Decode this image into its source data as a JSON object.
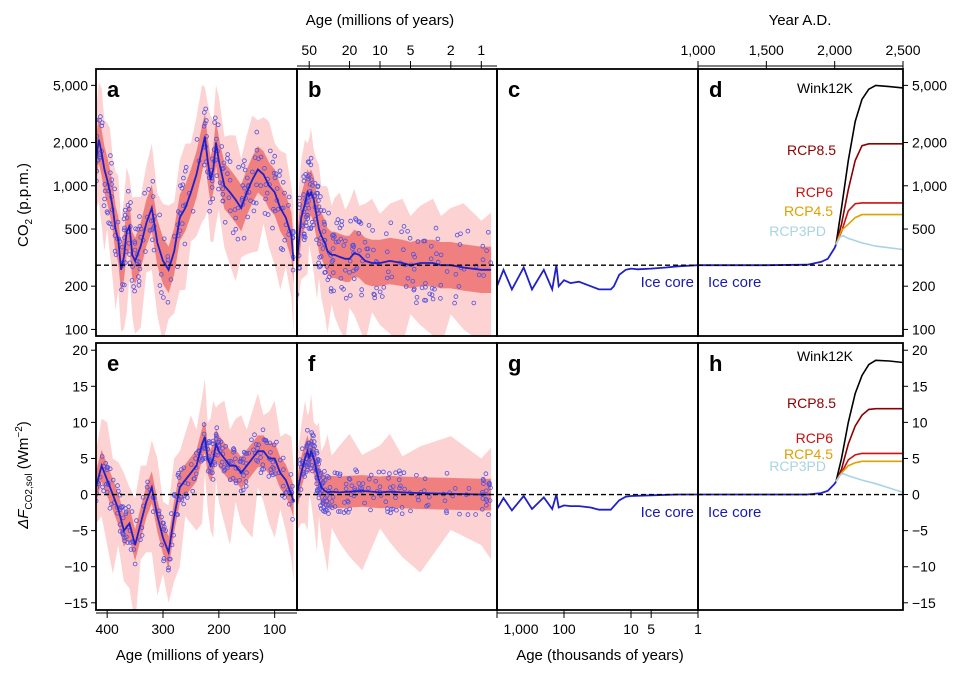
{
  "figure": {
    "top_axes": [
      {
        "title": "Age (millions of years)",
        "ticks": [
          "50",
          "20",
          "10",
          "5",
          "2",
          "1"
        ]
      },
      {
        "title": "Year A.D.",
        "ticks": [
          "1,000",
          "1,500",
          "2,000",
          "2,500"
        ]
      }
    ],
    "bottom_axes": [
      {
        "title": "Age (millions of years)",
        "ticks": [
          "400",
          "300",
          "200",
          "100"
        ]
      },
      {
        "title": "Age (thousands of years)",
        "ticks": [
          "1,000",
          "100",
          "10",
          "5",
          "1"
        ]
      }
    ],
    "row1": {
      "ylabel_main": "CO",
      "ylabel_sub": "2",
      "ylabel_tail": " (p.p.m.)",
      "yticks": [
        "5,000",
        "2,000",
        "1,000",
        "500",
        "200",
        "100"
      ],
      "panels": [
        "a",
        "b",
        "c",
        "d"
      ]
    },
    "row2": {
      "ylabel_main": "ΔF",
      "ylabel_sub": "CO2,sol",
      "ylabel_tail": " (Wm",
      "ylabel_sup": "−2",
      "ylabel_end": ")",
      "yticks": [
        "20",
        "15",
        "10",
        "5",
        "0",
        "−5",
        "−10",
        "−15"
      ],
      "panels": [
        "e",
        "f",
        "g",
        "h"
      ]
    },
    "ice_core_label": "Ice core",
    "colors": {
      "series_line": "#2020c8",
      "points": "#5050e0",
      "band_inner": "#f08080",
      "band_outer": "#fcd2d2",
      "reference_line": "#000000",
      "Wink12K": "#000000",
      "RCP8.5": "#8b0000",
      "RCP6": "#cc1010",
      "RCP4.5": "#e0a000",
      "RCP3PD": "#a8d4e6"
    }
  },
  "chart_data": [
    {
      "type": "line",
      "panel": "a",
      "xlabel": "Age (millions of years)",
      "ylabel": "CO2 (p.p.m.)",
      "yscale": "log",
      "ylim": [
        90,
        6500
      ],
      "xlim": [
        420,
        60
      ],
      "reference_value": 280,
      "x": [
        420,
        415,
        410,
        405,
        400,
        395,
        390,
        385,
        380,
        375,
        370,
        365,
        360,
        355,
        350,
        340,
        330,
        320,
        310,
        300,
        290,
        280,
        270,
        260,
        250,
        240,
        230,
        225,
        220,
        215,
        210,
        205,
        200,
        190,
        180,
        170,
        160,
        150,
        140,
        130,
        120,
        110,
        100,
        90,
        80,
        70,
        66
      ],
      "values": [
        1500,
        2100,
        1700,
        1300,
        1100,
        900,
        700,
        500,
        420,
        260,
        320,
        480,
        520,
        330,
        300,
        380,
        550,
        700,
        400,
        300,
        260,
        350,
        600,
        700,
        900,
        1200,
        1800,
        2200,
        1500,
        1100,
        1300,
        2000,
        1500,
        1000,
        900,
        800,
        700,
        900,
        1100,
        1300,
        1200,
        1000,
        900,
        700,
        600,
        450,
        300
      ]
    },
    {
      "type": "line",
      "panel": "b",
      "xlabel": "Age (millions of years)",
      "ylabel": "CO2 (p.p.m.)",
      "yscale": "log",
      "ylim": [
        90,
        6500
      ],
      "xlim": [
        66,
        0.7
      ],
      "reference_value": 280,
      "x": [
        66,
        60,
        55,
        52,
        50,
        48,
        45,
        42,
        40,
        38,
        35,
        33,
        30,
        28,
        25,
        22,
        20,
        18,
        16,
        14,
        12,
        10,
        8,
        6,
        5,
        4,
        3,
        2.5,
        2,
        1.5,
        1,
        0.8
      ],
      "values": [
        300,
        600,
        750,
        900,
        850,
        900,
        800,
        600,
        500,
        450,
        400,
        350,
        330,
        330,
        320,
        310,
        310,
        340,
        330,
        300,
        290,
        290,
        300,
        290,
        280,
        290,
        290,
        280,
        280,
        270,
        260,
        260
      ]
    },
    {
      "type": "line",
      "panel": "c",
      "xlabel": "Age (thousands of years)",
      "ylabel": "CO2 (p.p.m.)",
      "yscale": "log",
      "ylim": [
        90,
        6500
      ],
      "xlim": [
        1000,
        1
      ],
      "reference_value": 280,
      "x": [
        1000,
        800,
        600,
        400,
        300,
        200,
        150,
        130,
        120,
        100,
        80,
        60,
        40,
        30,
        20,
        18,
        15,
        12,
        10,
        8,
        5,
        3,
        2,
        1
      ],
      "values": [
        200,
        260,
        190,
        270,
        190,
        260,
        190,
        280,
        200,
        220,
        210,
        215,
        200,
        190,
        190,
        200,
        240,
        260,
        265,
        262,
        265,
        270,
        275,
        280
      ]
    },
    {
      "type": "line",
      "panel": "d",
      "xlabel": "Year A.D.",
      "ylabel": "CO2 (p.p.m.)",
      "yscale": "log",
      "ylim": [
        90,
        6500
      ],
      "xlim": [
        1000,
        2500
      ],
      "reference_value": 280,
      "historical": {
        "x": [
          1000,
          1500,
          1800,
          1900,
          1950,
          2000,
          2010
        ],
        "values": [
          280,
          280,
          282,
          295,
          310,
          370,
          390
        ]
      },
      "series": [
        {
          "name": "Wink12K",
          "x": [
            2010,
            2050,
            2100,
            2150,
            2200,
            2250,
            2300,
            2400,
            2500
          ],
          "values": [
            390,
            700,
            1500,
            2800,
            4000,
            4700,
            5000,
            4900,
            4800
          ]
        },
        {
          "name": "RCP8.5",
          "x": [
            2010,
            2050,
            2100,
            2150,
            2200,
            2250,
            2300,
            2500
          ],
          "values": [
            390,
            540,
            940,
            1500,
            1900,
            1960,
            1960,
            1960
          ]
        },
        {
          "name": "RCP6",
          "x": [
            2010,
            2050,
            2100,
            2150,
            2200,
            2300,
            2500
          ],
          "values": [
            390,
            480,
            670,
            750,
            760,
            760,
            760
          ]
        },
        {
          "name": "RCP4.5",
          "x": [
            2010,
            2050,
            2100,
            2150,
            2200,
            2300,
            2500
          ],
          "values": [
            390,
            490,
            540,
            600,
            630,
            630,
            630
          ]
        },
        {
          "name": "RCP3PD",
          "x": [
            2010,
            2040,
            2060,
            2100,
            2200,
            2300,
            2400,
            2500
          ],
          "values": [
            390,
            440,
            450,
            430,
            400,
            380,
            370,
            360
          ]
        }
      ]
    },
    {
      "type": "line",
      "panel": "e",
      "xlabel": "Age (millions of years)",
      "ylabel": "ΔF CO2,sol (Wm−2)",
      "ylim": [
        -16,
        21
      ],
      "xlim": [
        420,
        60
      ],
      "reference_value": 0,
      "x": [
        420,
        410,
        400,
        390,
        380,
        370,
        360,
        350,
        340,
        330,
        320,
        310,
        300,
        290,
        280,
        270,
        260,
        250,
        240,
        230,
        225,
        220,
        215,
        210,
        205,
        200,
        190,
        180,
        170,
        160,
        150,
        140,
        130,
        120,
        110,
        100,
        90,
        80,
        70,
        66
      ],
      "values": [
        1,
        4,
        2,
        0,
        -2,
        -5,
        -4,
        -7,
        -4,
        -1,
        1,
        -3,
        -6,
        -8,
        -3,
        1,
        2,
        3,
        4,
        7,
        8,
        5,
        4,
        5,
        7,
        6,
        5,
        4,
        4,
        3,
        4,
        5,
        6,
        6,
        5,
        5,
        3,
        2,
        0,
        -1
      ]
    },
    {
      "type": "line",
      "panel": "f",
      "xlabel": "Age (millions of years)",
      "ylabel": "ΔF CO2,sol (Wm−2)",
      "ylim": [
        -16,
        21
      ],
      "xlim": [
        66,
        0.7
      ],
      "reference_value": 0,
      "x": [
        66,
        60,
        55,
        52,
        50,
        48,
        45,
        42,
        40,
        38,
        35,
        33,
        30,
        25,
        20,
        15,
        10,
        8,
        6,
        4,
        2,
        1,
        0.8
      ],
      "values": [
        0,
        3,
        5,
        6,
        5,
        6,
        5,
        3,
        2,
        1,
        0.5,
        0.3,
        0.4,
        0.3,
        0.4,
        0.5,
        0.3,
        0.4,
        0.3,
        0.2,
        0.1,
        0,
        0
      ]
    },
    {
      "type": "line",
      "panel": "g",
      "xlabel": "Age (thousands of years)",
      "ylabel": "ΔF CO2,sol (Wm−2)",
      "ylim": [
        -16,
        21
      ],
      "xlim": [
        1000,
        1
      ],
      "reference_value": 0,
      "x": [
        1000,
        800,
        600,
        400,
        300,
        200,
        150,
        130,
        120,
        100,
        80,
        60,
        40,
        30,
        20,
        15,
        12,
        10,
        5,
        2,
        1
      ],
      "values": [
        -2,
        -0.5,
        -2.2,
        -0.2,
        -2,
        -0.4,
        -2,
        0,
        -1.8,
        -1.5,
        -1.6,
        -1.6,
        -1.8,
        -2.1,
        -2.1,
        -0.8,
        -0.3,
        -0.2,
        -0.1,
        0,
        0
      ]
    },
    {
      "type": "line",
      "panel": "h",
      "xlabel": "Year A.D.",
      "ylabel": "ΔF CO2,sol (Wm−2)",
      "ylim": [
        -16,
        21
      ],
      "xlim": [
        1000,
        2500
      ],
      "reference_value": 0,
      "historical": {
        "x": [
          1000,
          1500,
          1800,
          1900,
          1950,
          2000,
          2010
        ],
        "values": [
          0,
          0,
          0,
          0.2,
          0.5,
          1.5,
          1.8
        ]
      },
      "series": [
        {
          "name": "Wink12K",
          "x": [
            2010,
            2050,
            2100,
            2150,
            2200,
            2250,
            2300,
            2400,
            2500
          ],
          "values": [
            1.8,
            5,
            10,
            14,
            16.5,
            18,
            18.6,
            18.5,
            18.3
          ]
        },
        {
          "name": "RCP8.5",
          "x": [
            2010,
            2050,
            2100,
            2150,
            2200,
            2250,
            2300,
            2500
          ],
          "values": [
            1.8,
            3.5,
            7,
            9.5,
            11,
            11.8,
            11.9,
            11.9
          ]
        },
        {
          "name": "RCP6",
          "x": [
            2010,
            2050,
            2100,
            2150,
            2200,
            2300,
            2500
          ],
          "values": [
            1.8,
            3,
            4.8,
            5.5,
            5.7,
            5.7,
            5.7
          ]
        },
        {
          "name": "RCP4.5",
          "x": [
            2010,
            2050,
            2100,
            2150,
            2200,
            2300,
            2500
          ],
          "values": [
            1.8,
            3,
            4,
            4.4,
            4.6,
            4.6,
            4.6
          ]
        },
        {
          "name": "RCP3PD",
          "x": [
            2010,
            2040,
            2060,
            2100,
            2200,
            2300,
            2400,
            2500
          ],
          "values": [
            1.8,
            2.7,
            2.9,
            2.6,
            2.0,
            1.5,
            0.9,
            0.3
          ]
        }
      ]
    }
  ]
}
